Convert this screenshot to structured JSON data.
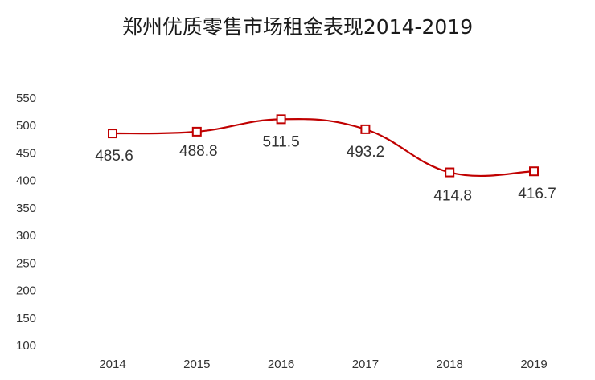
{
  "chart_data": {
    "type": "line",
    "title": "郑州优质零售市场租金表现2014-2019",
    "xlabel": "",
    "ylabel": "",
    "categories": [
      "2014",
      "2015",
      "2016",
      "2017",
      "2018",
      "2019"
    ],
    "series": [
      {
        "values": [
          485.6,
          488.8,
          511.5,
          493.2,
          414.8,
          416.7
        ]
      }
    ],
    "data_labels": [
      "485.6",
      "488.8",
      "511.5",
      "493.2",
      "414.8",
      "416.7"
    ],
    "y_ticks": [
      100,
      150,
      200,
      250,
      300,
      350,
      400,
      450,
      500,
      550
    ],
    "ylim": [
      100,
      550
    ],
    "line_color": "#c00000",
    "marker": "square-hollow",
    "smooth": true,
    "grid": false,
    "legend": "none"
  }
}
